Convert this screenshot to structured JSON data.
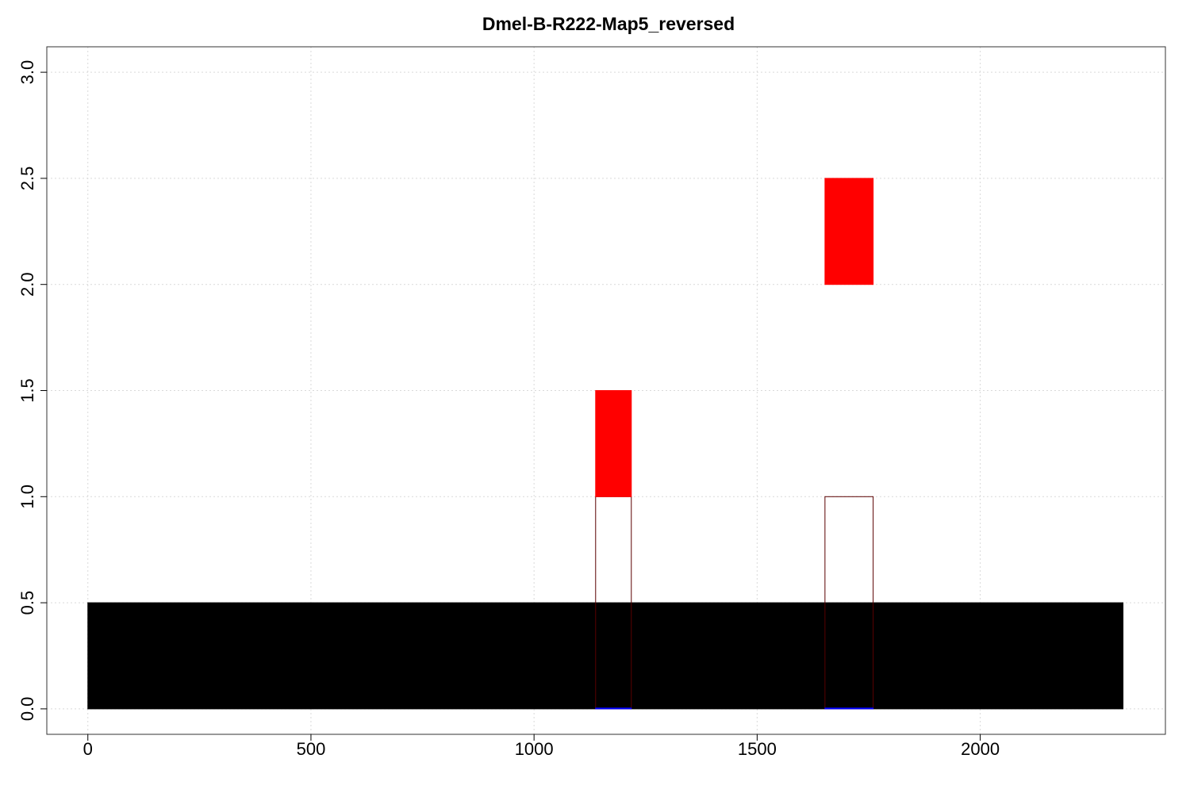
{
  "chart_data": {
    "type": "bar",
    "title": "Dmel-B-R222-Map5_reversed",
    "xlabel": "",
    "ylabel": "",
    "xlim": [
      -92,
      2415
    ],
    "ylim": [
      -0.12,
      3.12
    ],
    "x_ticks": [
      0,
      500,
      1000,
      1500,
      2000
    ],
    "x_tick_labels": [
      "0",
      "500",
      "1000",
      "1500",
      "2000"
    ],
    "y_ticks": [
      0,
      0.5,
      1,
      1.5,
      2,
      2.5,
      3
    ],
    "y_tick_labels": [
      "0.0",
      "0.5",
      "1.0",
      "1.5",
      "2.0",
      "2.5",
      "3.0"
    ],
    "grid": true,
    "colors": {
      "black": "#000000",
      "red": "#ff0000",
      "dark_red_outline": "#5a0000",
      "blue": "#0000ff"
    },
    "rects": [
      {
        "x0": 0,
        "x1": 2320,
        "y0": 0,
        "y1": 0.5,
        "fill": "#000000",
        "stroke": "#000000"
      },
      {
        "x0": 1138,
        "x1": 1218,
        "y0": 0,
        "y1": 1.0,
        "fill": "none",
        "stroke": "#5a0000"
      },
      {
        "x0": 1652,
        "x1": 1760,
        "y0": 0,
        "y1": 1.0,
        "fill": "none",
        "stroke": "#5a0000"
      },
      {
        "x0": 1138,
        "x1": 1218,
        "y0": 1.0,
        "y1": 1.5,
        "fill": "#ff0000",
        "stroke": "#ff0000"
      },
      {
        "x0": 1652,
        "x1": 1760,
        "y0": 2.0,
        "y1": 2.5,
        "fill": "#ff0000",
        "stroke": "#ff0000"
      },
      {
        "x0": 1138,
        "x1": 1218,
        "y0": 0,
        "y1": 0.004,
        "fill": "#0000ff",
        "stroke": "#0000ff"
      },
      {
        "x0": 1652,
        "x1": 1760,
        "y0": 0,
        "y1": 0.004,
        "fill": "#0000ff",
        "stroke": "#0000ff"
      }
    ]
  }
}
